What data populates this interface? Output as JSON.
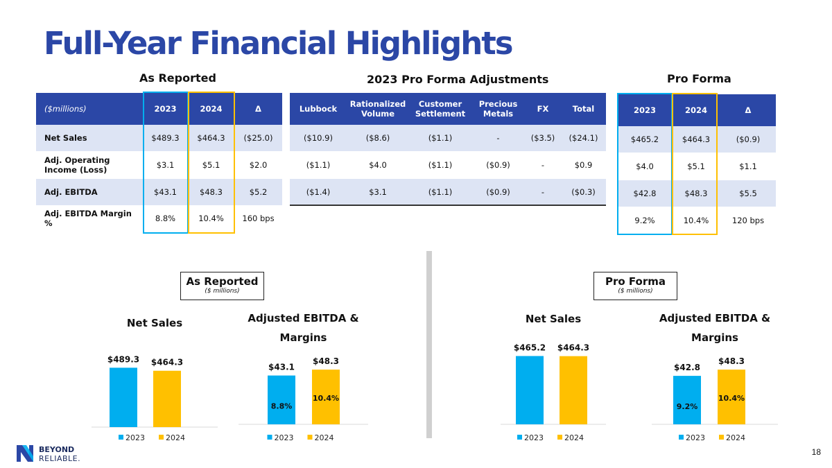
{
  "title": "Full-Year Financial Highlights",
  "sections": {
    "as_reported": "As Reported",
    "pro_forma_adjustments": "2023 Pro Forma Adjustments",
    "pro_forma": "Pro Forma"
  },
  "table_reported": {
    "headers": [
      "($millions)",
      "2023",
      "2024",
      "Δ"
    ],
    "rows": [
      [
        "Net Sales",
        "$489.3",
        "$464.3",
        "($25.0)"
      ],
      [
        "Adj. Operating Income (Loss)",
        "$3.1",
        "$5.1",
        "$2.0"
      ],
      [
        "Adj. EBITDA",
        "$43.1",
        "$48.3",
        "$5.2"
      ],
      [
        "Adj. EBITDA Margin %",
        "8.8%",
        "10.4%",
        "160 bps"
      ]
    ]
  },
  "table_adjustments": {
    "headers": [
      "Lubbock",
      "Rationalized Volume",
      "Customer Settlement",
      "Precious Metals",
      "FX",
      "Total"
    ],
    "rows": [
      [
        "($10.9)",
        "($8.6)",
        "($1.1)",
        "-",
        "($3.5)",
        "($24.1)"
      ],
      [
        "($1.1)",
        "$4.0",
        "($1.1)",
        "($0.9)",
        "-",
        "$0.9"
      ],
      [
        "($1.4)",
        "$3.1",
        "($1.1)",
        "($0.9)",
        "-",
        "($0.3)"
      ]
    ]
  },
  "table_proforma": {
    "headers": [
      "2023",
      "2024",
      "Δ"
    ],
    "rows": [
      [
        "$465.2",
        "$464.3",
        "($0.9)"
      ],
      [
        "$4.0",
        "$5.1",
        "$1.1"
      ],
      [
        "$42.8",
        "$48.3",
        "$5.5"
      ],
      [
        "9.2%",
        "10.4%",
        "120 bps"
      ]
    ]
  },
  "box_reported": {
    "title": "As Reported",
    "subtitle": "($ millions)"
  },
  "box_proforma": {
    "title": "Pro Forma",
    "subtitle": "($ millions)"
  },
  "colors": {
    "brand": "#2b47a6",
    "y2023": "#00aeef",
    "y2024": "#ffc000"
  },
  "page_number": "18",
  "logo": {
    "line1": "BEYOND",
    "line2": "RELIABLE."
  },
  "chart_data": [
    {
      "type": "bar",
      "title": "Net Sales",
      "categories": [
        "2023",
        "2024"
      ],
      "values": [
        489.3,
        464.3
      ],
      "data_labels": [
        "$489.3",
        "$464.3"
      ],
      "inner_labels": [],
      "legend": [
        "2023",
        "2024"
      ],
      "ylim": [
        0,
        560
      ]
    },
    {
      "type": "bar",
      "title": "Adjusted EBITDA & Margins",
      "categories": [
        "2023",
        "2024"
      ],
      "values": [
        43.1,
        48.3
      ],
      "data_labels": [
        "$43.1",
        "$48.3"
      ],
      "inner_labels": [
        "8.8%",
        "10.4%"
      ],
      "legend": [
        "2023",
        "2024"
      ],
      "ylim": [
        0,
        60
      ]
    },
    {
      "type": "bar",
      "title": "Net Sales",
      "categories": [
        "2023",
        "2024"
      ],
      "values": [
        465.2,
        464.3
      ],
      "data_labels": [
        "$465.2",
        "$464.3"
      ],
      "inner_labels": [],
      "legend": [
        "2023",
        "2024"
      ],
      "ylim": [
        0,
        510
      ]
    },
    {
      "type": "bar",
      "title": "Adjusted EBITDA & Margins",
      "categories": [
        "2023",
        "2024"
      ],
      "values": [
        42.8,
        48.3
      ],
      "data_labels": [
        "$42.8",
        "$48.3"
      ],
      "inner_labels": [
        "9.2%",
        "10.4%"
      ],
      "legend": [
        "2023",
        "2024"
      ],
      "ylim": [
        0,
        60
      ]
    }
  ]
}
